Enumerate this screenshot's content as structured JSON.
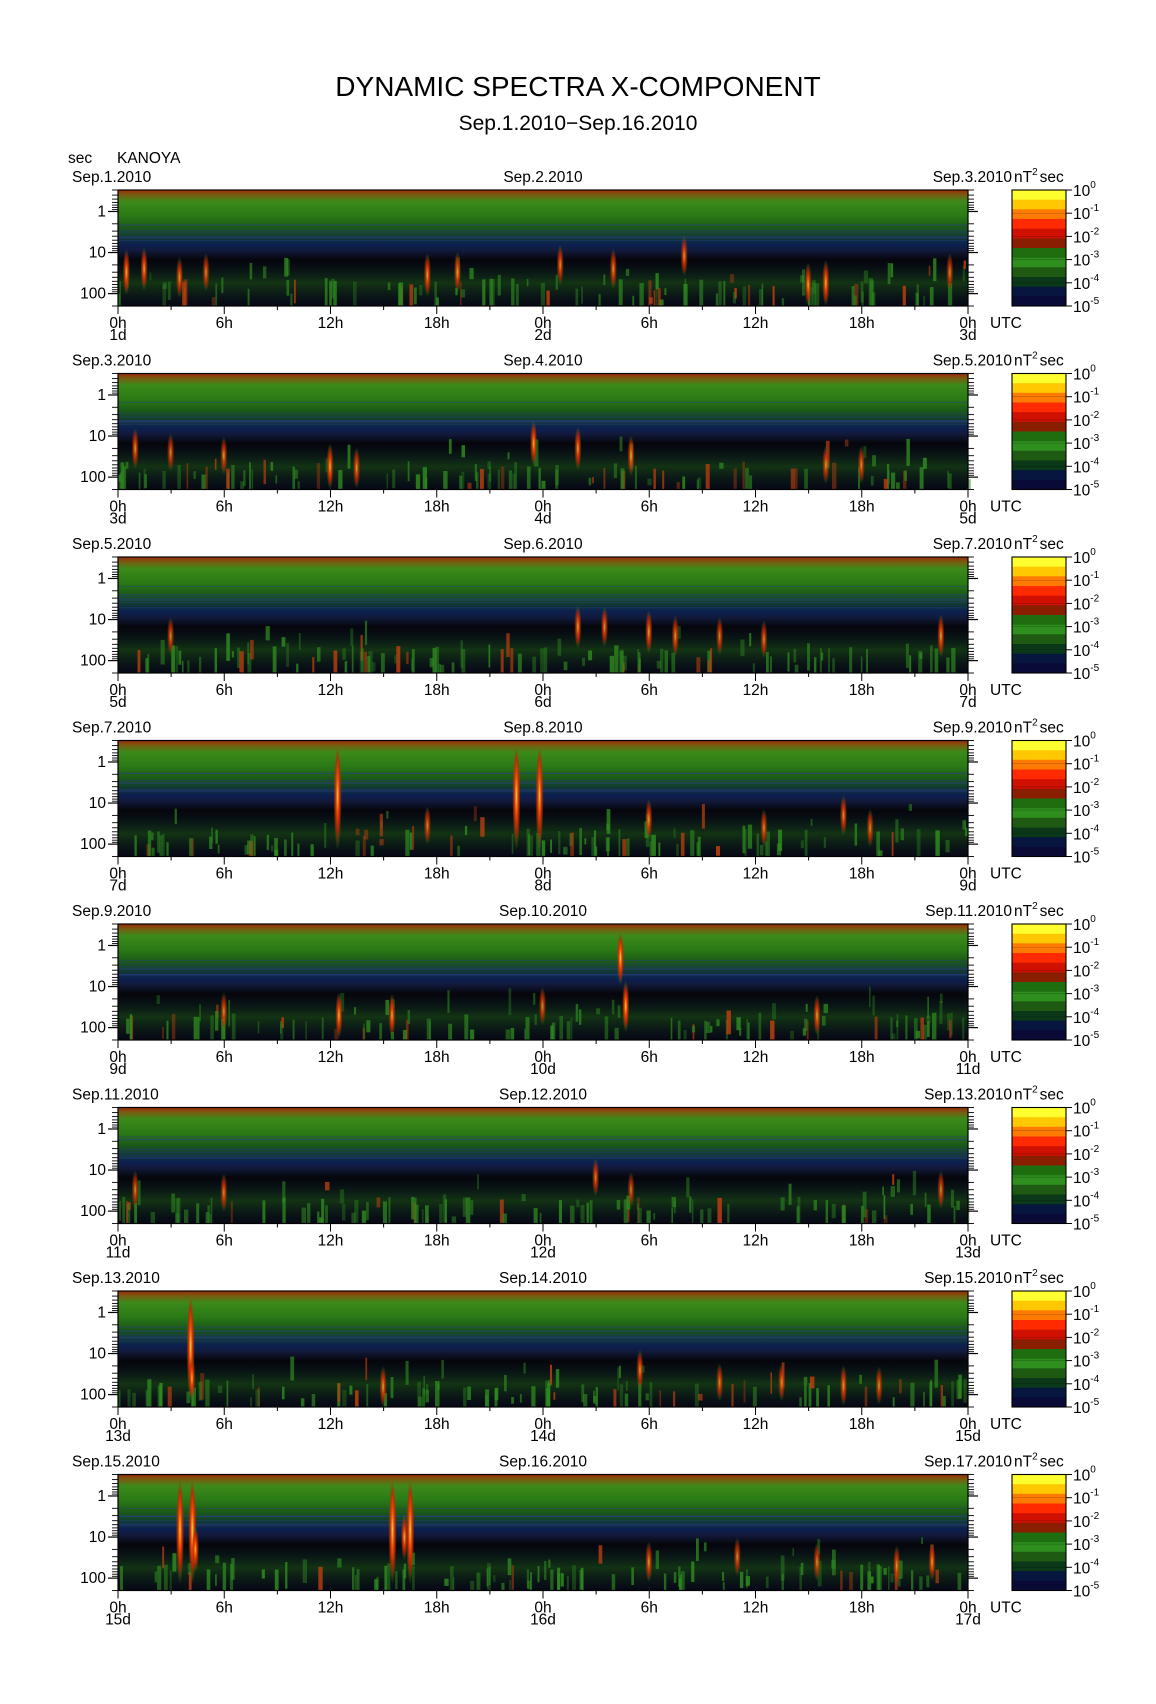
{
  "chart_data": {
    "type": "heatmap",
    "title": "DYNAMIC SPECTRA X-COMPONENT",
    "subtitle": "Sep.1.2010−Sep.16.2010",
    "y_unit_label": "sec",
    "station": "KANOYA",
    "colorbar_unit": "nT",
    "colorbar_unit_sup": "2",
    "colorbar_unit_tail": "sec",
    "x_unit": "UTC",
    "y_scale": "log",
    "y_ticks": [
      "1",
      "10",
      "100"
    ],
    "x_hour_ticks": [
      "0h",
      "6h",
      "12h",
      "18h",
      "0h",
      "6h",
      "12h",
      "18h",
      "0h"
    ],
    "colorbar_ticks": [
      {
        "base": "10",
        "exp": "0"
      },
      {
        "base": "10",
        "exp": "-1"
      },
      {
        "base": "10",
        "exp": "-2"
      },
      {
        "base": "10",
        "exp": "-3"
      },
      {
        "base": "10",
        "exp": "-4"
      },
      {
        "base": "10",
        "exp": "-5"
      }
    ],
    "colorbar_colors": [
      "#ffff30",
      "#ffc800",
      "#ff7a00",
      "#ff2a00",
      "#d01000",
      "#8a1e00",
      "#1e6e10",
      "#2e8e1e",
      "#1e5a12",
      "#0a3818",
      "#06163e",
      "#0a0a36"
    ],
    "panels": [
      {
        "date_start": "Sep.1.2010",
        "date_mid": "Sep.2.2010",
        "date_end": "Sep.3.2010",
        "day_start": "1d",
        "day_mid": "2d",
        "day_end": "3d",
        "events": [
          [
            0.5,
            30,
            0.7
          ],
          [
            1.5,
            25,
            0.6
          ],
          [
            3.5,
            40,
            0.5
          ],
          [
            5,
            30,
            0.4
          ],
          [
            17.5,
            35,
            0.6
          ],
          [
            19.2,
            30,
            0.5
          ],
          [
            25,
            20,
            0.5
          ],
          [
            28,
            25,
            0.5
          ],
          [
            32,
            12,
            0.5
          ],
          [
            39,
            60,
            0.6
          ],
          [
            40,
            70,
            0.7
          ],
          [
            47,
            30,
            0.4
          ]
        ]
      },
      {
        "date_start": "Sep.3.2010",
        "date_mid": "Sep.4.2010",
        "date_end": "Sep.5.2010",
        "day_start": "3d",
        "day_mid": "4d",
        "day_end": "5d",
        "events": [
          [
            1,
            20,
            0.5
          ],
          [
            3,
            25,
            0.4
          ],
          [
            6,
            30,
            0.4
          ],
          [
            12,
            60,
            0.7
          ],
          [
            13.5,
            60,
            0.5
          ],
          [
            23.5,
            15,
            0.7
          ],
          [
            26,
            20,
            0.6
          ],
          [
            29,
            30,
            0.5
          ],
          [
            40,
            50,
            0.4
          ],
          [
            42,
            50,
            0.4
          ]
        ]
      },
      {
        "date_start": "Sep.5.2010",
        "date_mid": "Sep.6.2010",
        "date_end": "Sep.7.2010",
        "day_start": "5d",
        "day_mid": "6d",
        "day_end": "7d",
        "events": [
          [
            3,
            25,
            0.4
          ],
          [
            26,
            15,
            0.6
          ],
          [
            27.5,
            15,
            0.5
          ],
          [
            30,
            20,
            0.6
          ],
          [
            31.5,
            25,
            0.5
          ],
          [
            34,
            25,
            0.4
          ],
          [
            36.5,
            30,
            0.4
          ],
          [
            46.5,
            25,
            0.6
          ]
        ]
      },
      {
        "date_start": "Sep.7.2010",
        "date_mid": "Sep.8.2010",
        "date_end": "Sep.9.2010",
        "day_start": "7d",
        "day_mid": "8d",
        "day_end": "9d",
        "events": [
          [
            12.4,
            0.4,
            0.8
          ],
          [
            22.5,
            0.4,
            0.9
          ],
          [
            23.8,
            0.4,
            0.8
          ],
          [
            17.5,
            35,
            0.4
          ],
          [
            30,
            25,
            0.5
          ],
          [
            36.5,
            40,
            0.4
          ],
          [
            41,
            20,
            0.5
          ],
          [
            42.5,
            40,
            0.4
          ]
        ]
      },
      {
        "date_start": "Sep.9.2010",
        "date_mid": "Sep.10.2010",
        "date_end": "Sep.11.2010",
        "day_start": "9d",
        "day_mid": "10d",
        "day_end": "11d",
        "events": [
          [
            12.5,
            50,
            0.7
          ],
          [
            15.5,
            50,
            0.6
          ],
          [
            28.4,
            2,
            1.0
          ],
          [
            28.7,
            30,
            0.9
          ],
          [
            39.5,
            50,
            0.5
          ],
          [
            6,
            40,
            0.4
          ],
          [
            24,
            30,
            0.4
          ]
        ]
      },
      {
        "date_start": "Sep.11.2010",
        "date_mid": "Sep.12.2010",
        "date_end": "Sep.13.2010",
        "day_start": "11d",
        "day_mid": "12d",
        "day_end": "13d",
        "events": [
          [
            1,
            30,
            0.4
          ],
          [
            6,
            35,
            0.4
          ],
          [
            27,
            15,
            0.4
          ],
          [
            29,
            30,
            0.3
          ],
          [
            46.5,
            30,
            0.4
          ]
        ]
      },
      {
        "date_start": "Sep.13.2010",
        "date_mid": "Sep.14.2010",
        "date_end": "Sep.15.2010",
        "day_start": "13d",
        "day_mid": "14d",
        "day_end": "15d",
        "events": [
          [
            4.1,
            0.4,
            0.9
          ],
          [
            4.2,
            40,
            0.6
          ],
          [
            15,
            70,
            0.5
          ],
          [
            29.5,
            25,
            0.5
          ],
          [
            34,
            50,
            0.4
          ],
          [
            37.5,
            50,
            0.4
          ],
          [
            41,
            60,
            0.5
          ],
          [
            43,
            60,
            0.4
          ]
        ]
      },
      {
        "date_start": "Sep.15.2010",
        "date_mid": "Sep.16.2010",
        "date_end": "Sep.17.2010",
        "day_start": "15d",
        "day_mid": "16d",
        "day_end": "17d",
        "events": [
          [
            3.5,
            0.4,
            0.9
          ],
          [
            4.2,
            0.5,
            1.0
          ],
          [
            4.4,
            20,
            0.7
          ],
          [
            15.5,
            0.4,
            0.9
          ],
          [
            16.5,
            1,
            0.9
          ],
          [
            16.2,
            10,
            0.7
          ],
          [
            30,
            40,
            0.5
          ],
          [
            35,
            30,
            0.4
          ],
          [
            39.5,
            40,
            0.4
          ],
          [
            44,
            50,
            0.5
          ],
          [
            46,
            40,
            0.4
          ]
        ]
      }
    ]
  }
}
